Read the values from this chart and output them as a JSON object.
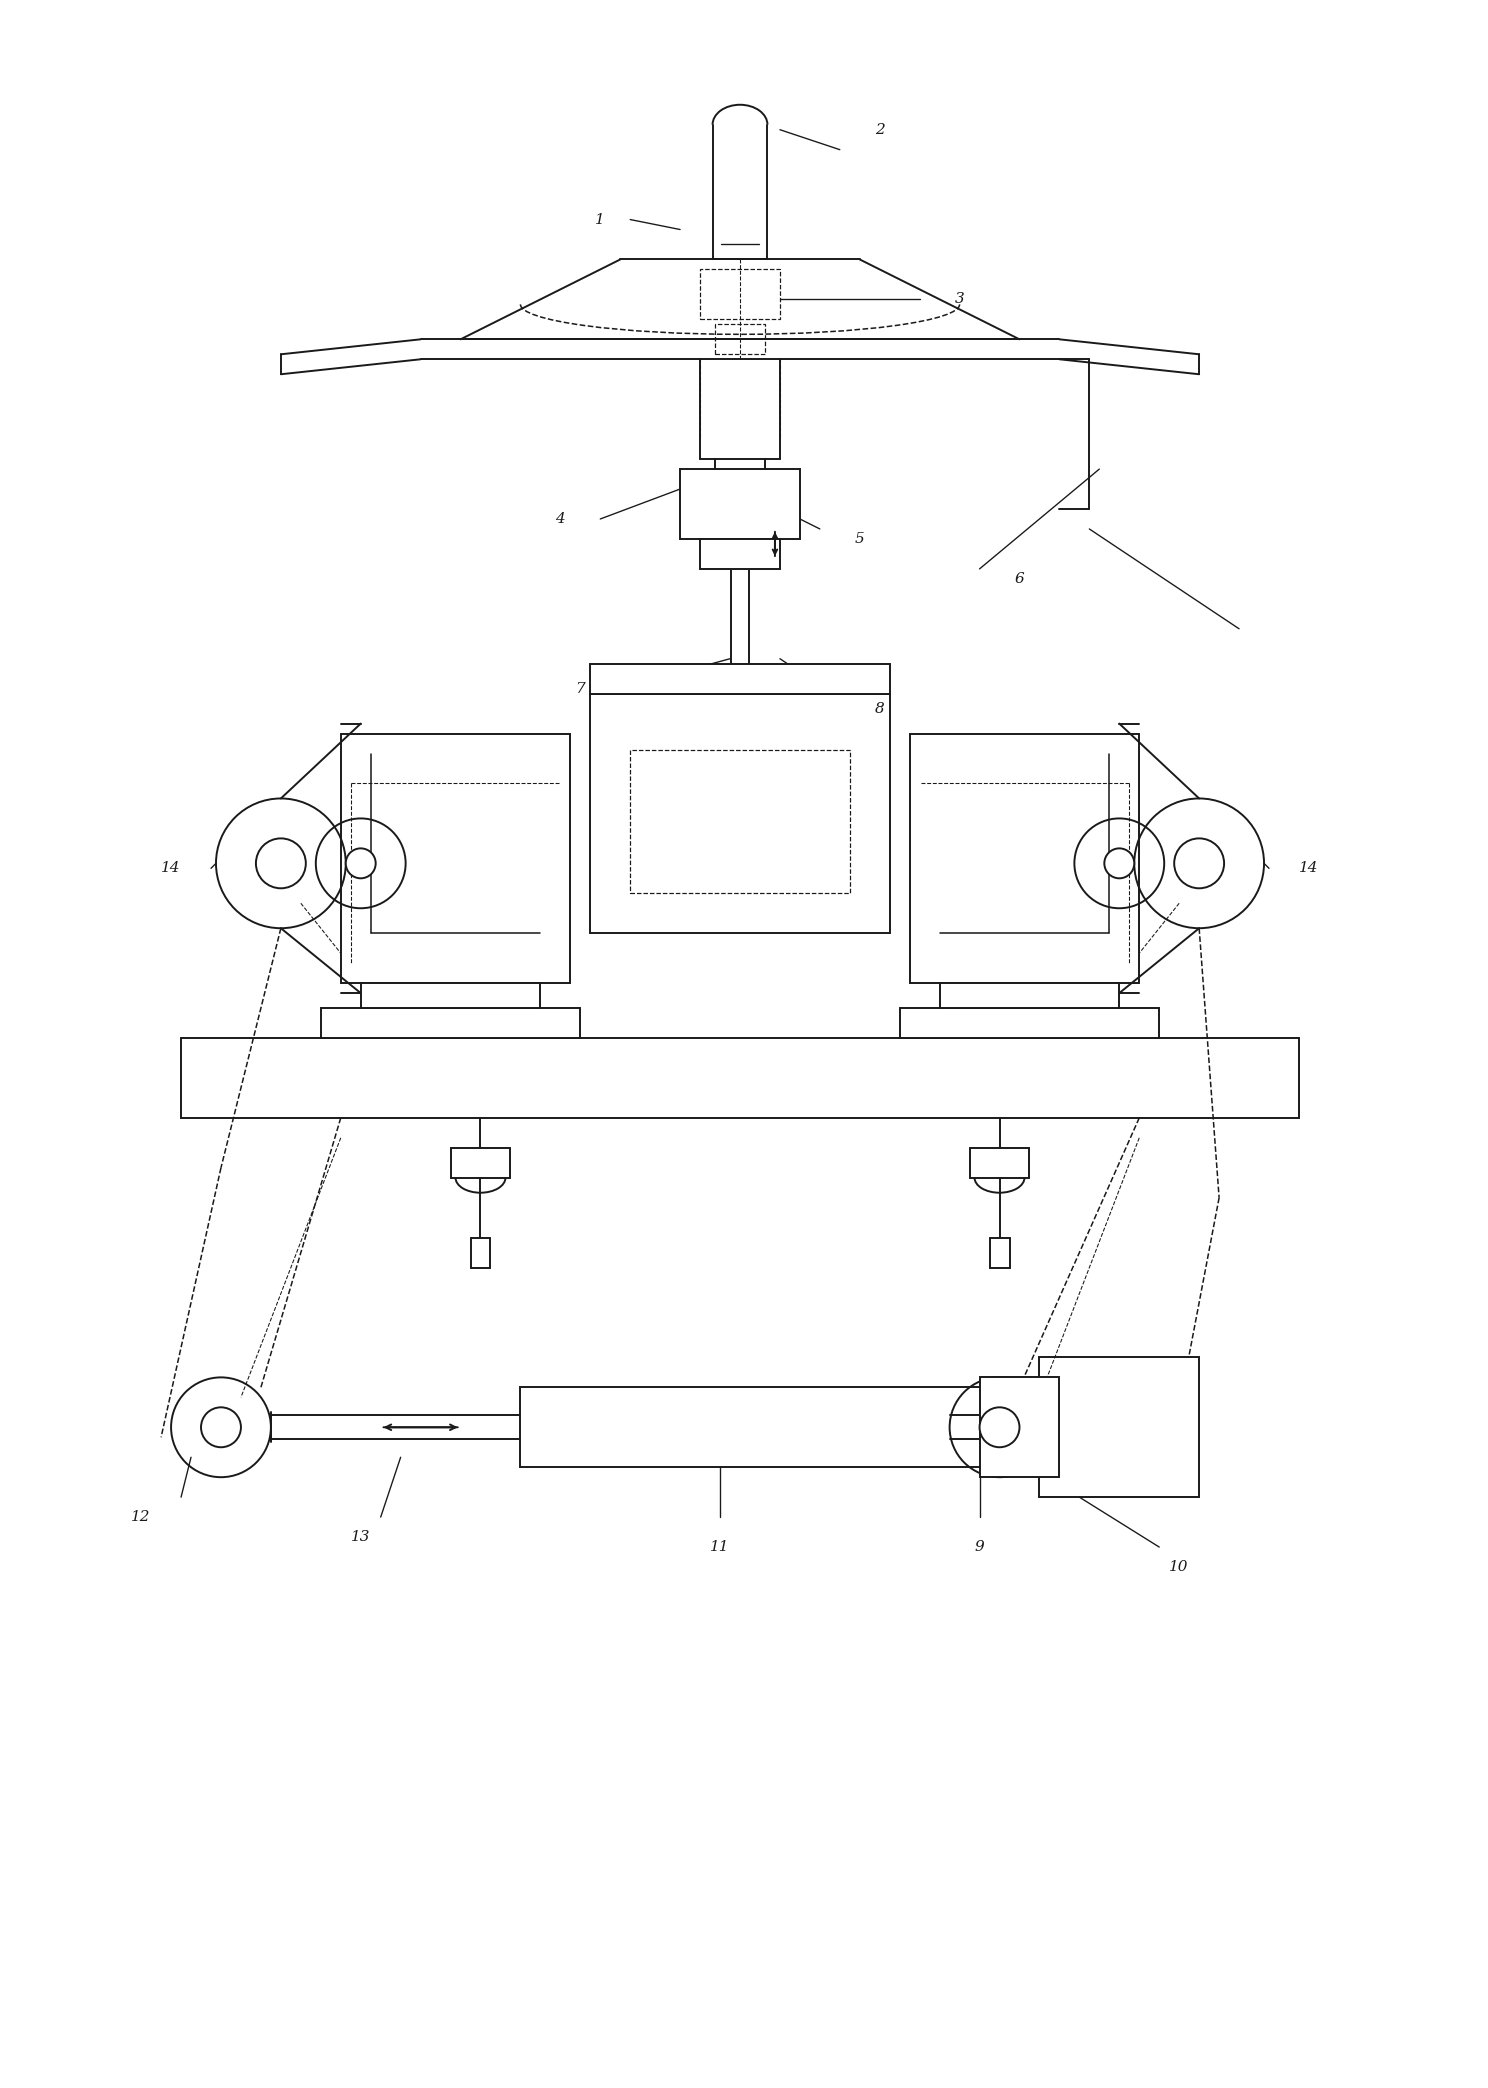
{
  "bg_color": "#ffffff",
  "lc": "#1a1a1a",
  "lw": 1.4,
  "dlw": 1.1,
  "fig_width": 14.88,
  "fig_height": 20.88,
  "dpi": 100
}
